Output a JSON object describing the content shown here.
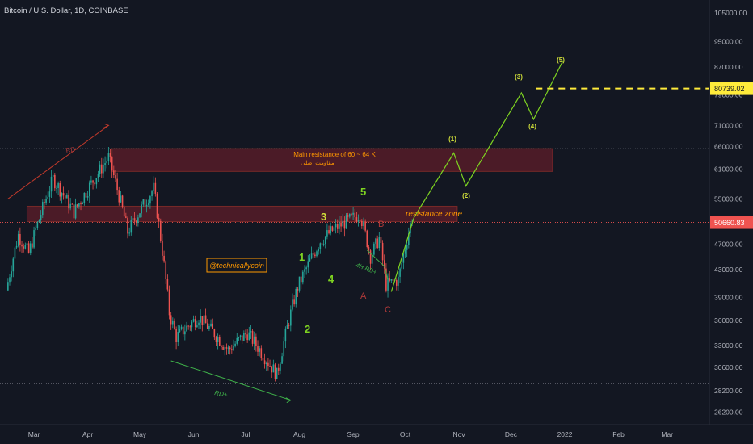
{
  "header": {
    "title": "Bitcoin / U.S. Dollar, 1D, COINBASE"
  },
  "colors": {
    "background": "#131722",
    "up": "#26a69a",
    "down": "#ef5350",
    "resistance_fill": "#7a1f2b",
    "wave_line": "#7ed321",
    "wave_label": "#7ed321",
    "target_line": "#ffeb3b",
    "current_price_badge": "#ef5350",
    "annotation_orange": "#ff9800"
  },
  "annotations": {
    "main_resistance_en": "Main resistance of 60 ~ 64 K",
    "main_resistance_fa": "مقاومت اصلی",
    "resistance_zone": "resistance zone",
    "watermark": "@technicallycoin",
    "rd_label_top": "RD-",
    "rd_label_bottom": "RD+",
    "rd_label_4h": "4H RD+",
    "wave_1": "1",
    "wave_2": "2",
    "wave_3": "3",
    "wave_4": "4",
    "wave_5": "5",
    "corr_a": "A",
    "corr_b": "B",
    "corr_c": "C",
    "proj_1": "(1)",
    "proj_2": "(2)",
    "proj_3": "(3)",
    "proj_4": "(4)",
    "proj_5": "(5)"
  },
  "chart_data": {
    "type": "candlestick",
    "title": "Bitcoin / U.S. Dollar, 1D, COINBASE",
    "x_tick_labels": [
      "Mar",
      "Apr",
      "May",
      "Jun",
      "Jul",
      "Aug",
      "Sep",
      "Oct",
      "Nov",
      "Dec",
      "2022",
      "Feb",
      "Mar"
    ],
    "y_tick_labels": [
      "105000.00",
      "95000.00",
      "87000.00",
      "79000.00",
      "71000.00",
      "66000.00",
      "61000.00",
      "55000.00",
      "50660.83",
      "47000.00",
      "43000.00",
      "39000.00",
      "36000.00",
      "33000.00",
      "30600.00",
      "28200.00",
      "26200.00"
    ],
    "y_scale": "log",
    "y_range": [
      25500,
      108000
    ],
    "current_price": "50660.83",
    "target_price": "80739.02",
    "resistance_zones": [
      {
        "name": "main",
        "low": 60500,
        "high": 65500
      },
      {
        "name": "zone",
        "low": 50800,
        "high": 53600
      }
    ],
    "horizontal_levels": [
      65500,
      28900
    ],
    "price_path": [
      {
        "date": "2021-02-14",
        "price": 40000
      },
      {
        "date": "2021-02-21",
        "price": 48500
      },
      {
        "date": "2021-02-27",
        "price": 45500
      },
      {
        "date": "2021-03-13",
        "price": 59000
      },
      {
        "date": "2021-03-25",
        "price": 52500
      },
      {
        "date": "2021-04-14",
        "price": 63500
      },
      {
        "date": "2021-04-25",
        "price": 49000
      },
      {
        "date": "2021-05-10",
        "price": 57000
      },
      {
        "date": "2021-05-19",
        "price": 37000
      },
      {
        "date": "2021-05-23",
        "price": 34000
      },
      {
        "date": "2021-06-05",
        "price": 36500
      },
      {
        "date": "2021-06-22",
        "price": 32500
      },
      {
        "date": "2021-07-03",
        "price": 34500
      },
      {
        "date": "2021-07-20",
        "price": 29800
      },
      {
        "date": "2021-08-01",
        "price": 40500
      },
      {
        "date": "2021-08-14",
        "price": 47500
      },
      {
        "date": "2021-08-22",
        "price": 49500
      },
      {
        "date": "2021-09-06",
        "price": 52200
      },
      {
        "date": "2021-09-12",
        "price": 45000
      },
      {
        "date": "2021-09-17",
        "price": 48000
      },
      {
        "date": "2021-09-21",
        "price": 40800
      },
      {
        "date": "2021-09-28",
        "price": 41500
      },
      {
        "date": "2021-10-06",
        "price": 51500
      }
    ],
    "wave_projection": [
      {
        "label": "(1)",
        "date": "2021-10-29",
        "price": 64500
      },
      {
        "label": "(2)",
        "date": "2021-11-05",
        "price": 57500
      },
      {
        "label": "(3)",
        "date": "2021-12-07",
        "price": 79500
      },
      {
        "label": "(4)",
        "date": "2021-12-14",
        "price": 72500
      },
      {
        "label": "(5)",
        "date": "2021-12-31",
        "price": 89000
      }
    ],
    "divergences": [
      {
        "label": "RD-",
        "from_date": "2021-02-14",
        "from_price": 55000,
        "to_date": "2021-04-13",
        "to_price": 71000
      },
      {
        "label": "RD+",
        "from_date": "2021-05-19",
        "from_price": 31300,
        "to_date": "2021-07-27",
        "to_price": 27300
      }
    ]
  }
}
